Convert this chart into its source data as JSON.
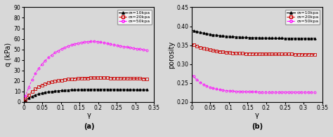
{
  "title_a": "(a)",
  "title_b": "(b)",
  "xlabel": "γ",
  "ylabel_a": "q (kPa)",
  "ylabel_b": "porosity",
  "xlim": [
    0,
    0.35
  ],
  "ylim_a": [
    0,
    90
  ],
  "ylim_b": [
    0.2,
    0.45
  ],
  "yticks_a": [
    0,
    10,
    20,
    30,
    40,
    50,
    60,
    70,
    80,
    90
  ],
  "yticks_b": [
    0.2,
    0.25,
    0.3,
    0.35,
    0.4,
    0.45
  ],
  "xticks": [
    0,
    0.05,
    0.1,
    0.15,
    0.2,
    0.25,
    0.3,
    0.35
  ],
  "colors": [
    "black",
    "#cc0000",
    "magenta"
  ],
  "bg_color": "#d8d8d8",
  "legend_a": [
    "σ₃=10kpa",
    "σ₃=20kpa",
    "σ₃=50kpa"
  ],
  "legend_b": [
    "σ₃=10kpa",
    "σ₃=20kpa",
    "σ₃=50kpa"
  ]
}
